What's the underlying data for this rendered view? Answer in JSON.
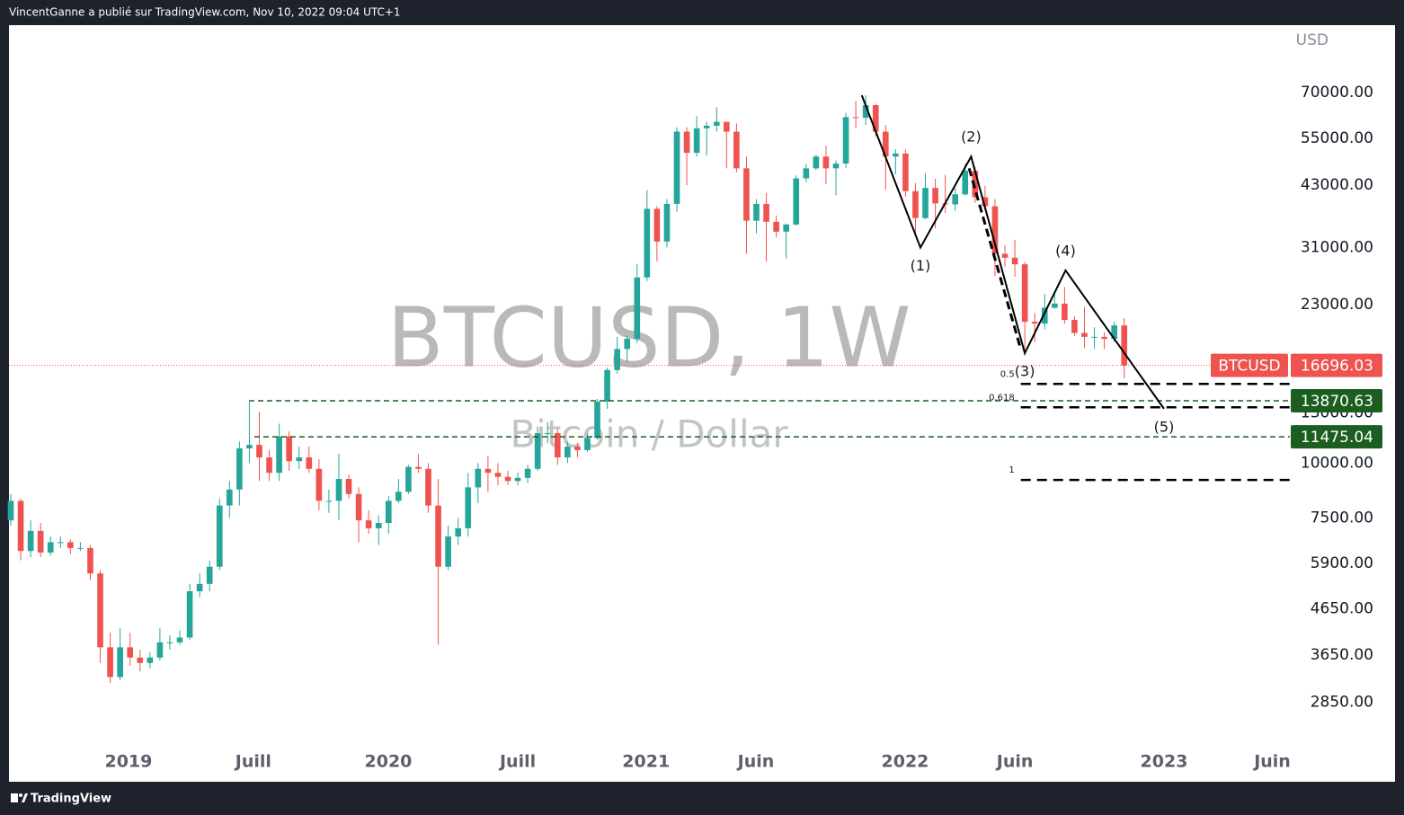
{
  "header": {
    "text": "VincentGanne a publié sur TradingView.com, Nov 10, 2022 09:04 UTC+1"
  },
  "footer": {
    "brand": "TradingView"
  },
  "chart_data": {
    "type": "candlestick",
    "watermark": {
      "title": "BTCUSD, 1W",
      "subtitle": "Bitcoin / Dollar"
    },
    "currency": "USD",
    "log_scale": true,
    "up_color": "#26a69a",
    "down_color": "#ef5350",
    "xlim": [
      -0.18,
      128.66
    ],
    "xticks": [
      {
        "value": 11.84,
        "label": "2019"
      },
      {
        "value": 24.4,
        "label": "Juill"
      },
      {
        "value": 37.97,
        "label": "2020"
      },
      {
        "value": 51.0,
        "label": "Juill"
      },
      {
        "value": 63.9,
        "label": "2021"
      },
      {
        "value": 74.95,
        "label": "Juin"
      },
      {
        "value": 89.96,
        "label": "2022"
      },
      {
        "value": 101.0,
        "label": "Juin"
      },
      {
        "value": 116.0,
        "label": "2023"
      },
      {
        "value": 126.9,
        "label": "Juin"
      }
    ],
    "ylim": [
      2265,
      99700
    ],
    "yticks": [
      {
        "value": 70000,
        "label": "70000.00"
      },
      {
        "value": 55000,
        "label": "55000.00"
      },
      {
        "value": 43000,
        "label": "43000.00"
      },
      {
        "value": 31000,
        "label": "31000.00"
      },
      {
        "value": 23000,
        "label": "23000.00"
      },
      {
        "value": 13000,
        "label": "13000.00"
      },
      {
        "value": 10000,
        "label": "10000.00"
      },
      {
        "value": 7500,
        "label": "7500.00"
      },
      {
        "value": 5900,
        "label": "5900.00"
      },
      {
        "value": 4650,
        "label": "4650.00"
      },
      {
        "value": 3650,
        "label": "3650.00"
      },
      {
        "value": 2850,
        "label": "2850.00"
      }
    ],
    "open": [
      7400,
      8200,
      6300,
      7000,
      6250,
      6600,
      6600,
      6400,
      6400,
      5600,
      3800,
      3250,
      3800,
      3600,
      3500,
      3600,
      3900,
      3900,
      4000,
      5100,
      5300,
      5800,
      8000,
      8700,
      10800,
      11000,
      10300,
      9500,
      11500,
      10100,
      10300,
      9700,
      8200,
      8200,
      9200,
      8500,
      7400,
      7100,
      7300,
      8200,
      8600,
      9800,
      9700,
      8000,
      5800,
      6800,
      7100,
      8800,
      9700,
      9500,
      9300,
      9100,
      9250,
      9700,
      11700,
      11700,
      10300,
      10900,
      10700,
      11400,
      13800,
      16300,
      18200,
      19200,
      26500,
      38000,
      32000,
      39000,
      57000,
      51000,
      58000,
      58800,
      60000,
      57000,
      47000,
      35700,
      39000,
      35500,
      33700,
      35000,
      44600,
      47000,
      50000,
      47000,
      48200,
      61500,
      61300,
      65500,
      57000,
      50000,
      50800,
      41700,
      36200,
      42400,
      39100,
      38900,
      41000,
      46400,
      40400,
      38500,
      30000,
      29400,
      28400,
      21000,
      20800,
      22600,
      23100,
      21200,
      19800,
      19400,
      19400,
      19200,
      20600
    ],
    "high": [
      8500,
      8300,
      7400,
      7300,
      6800,
      6800,
      6700,
      6600,
      6500,
      5700,
      4100,
      4200,
      4100,
      3750,
      3700,
      4200,
      4050,
      4150,
      5300,
      5600,
      6000,
      8300,
      9100,
      11200,
      13800,
      13100,
      10700,
      12300,
      11800,
      10900,
      10900,
      10200,
      8700,
      10500,
      9400,
      8800,
      7800,
      7600,
      8400,
      9200,
      9900,
      10500,
      10000,
      9200,
      7200,
      7500,
      9500,
      10000,
      10400,
      10000,
      9600,
      9500,
      9900,
      12100,
      12400,
      12000,
      11200,
      11100,
      11700,
      14000,
      16500,
      19400,
      19500,
      28400,
      41900,
      38500,
      40000,
      58300,
      58300,
      61800,
      60000,
      64800,
      60000,
      59500,
      50000,
      40000,
      41300,
      36700,
      35200,
      45300,
      48100,
      50500,
      52900,
      49000,
      62900,
      67000,
      69000,
      66000,
      59000,
      52000,
      51900,
      43500,
      45800,
      44500,
      45400,
      42400,
      48200,
      47300,
      42900,
      40000,
      31400,
      32300,
      28700,
      22000,
      24300,
      24700,
      25200,
      21600,
      22700,
      20400,
      19900,
      21000,
      21400
    ],
    "low": [
      7200,
      6000,
      6100,
      6100,
      6150,
      6400,
      6200,
      6300,
      5400,
      3500,
      3150,
      3200,
      3450,
      3350,
      3400,
      3550,
      3750,
      3850,
      3950,
      4950,
      5100,
      5700,
      7500,
      8000,
      10000,
      9100,
      9100,
      9100,
      9600,
      9700,
      9500,
      7800,
      7700,
      7400,
      8300,
      6600,
      6900,
      6500,
      6900,
      8100,
      8500,
      9500,
      7700,
      3850,
      5700,
      6500,
      6800,
      8100,
      8600,
      8900,
      8900,
      8900,
      9000,
      9600,
      11100,
      9900,
      10000,
      10300,
      10600,
      11300,
      13300,
      16000,
      16900,
      18800,
      26000,
      28800,
      31000,
      37400,
      43000,
      50000,
      50300,
      57000,
      47000,
      46000,
      30000,
      33400,
      28800,
      32700,
      29300,
      34800,
      43700,
      46500,
      43300,
      40800,
      47100,
      58000,
      59000,
      55600,
      42000,
      45600,
      40500,
      32900,
      36000,
      34300,
      37200,
      37600,
      40800,
      39200,
      37600,
      26700,
      28000,
      26600,
      17600,
      18900,
      20200,
      22500,
      20800,
      19500,
      18300,
      18200,
      18200,
      18900,
      15600
    ],
    "close": [
      8200,
      6300,
      7000,
      6250,
      6600,
      6600,
      6400,
      6400,
      5600,
      3800,
      3250,
      3800,
      3600,
      3500,
      3600,
      3900,
      3900,
      4000,
      5100,
      5300,
      5800,
      8000,
      8700,
      10800,
      11000,
      10300,
      9500,
      11500,
      10100,
      10300,
      9700,
      8200,
      8200,
      9200,
      8500,
      7400,
      7100,
      7300,
      8200,
      8600,
      9800,
      9700,
      8000,
      5800,
      6800,
      7100,
      8800,
      9700,
      9500,
      9300,
      9100,
      9250,
      9700,
      11700,
      11700,
      10300,
      10900,
      10700,
      11400,
      13800,
      16300,
      18200,
      19200,
      26500,
      38000,
      32000,
      39000,
      57000,
      51000,
      58000,
      58800,
      60000,
      57000,
      47000,
      35700,
      39000,
      35500,
      33700,
      35000,
      44600,
      47000,
      50000,
      47000,
      48200,
      61500,
      61300,
      65500,
      57000,
      50000,
      50800,
      41700,
      36200,
      42400,
      39100,
      38900,
      41000,
      46400,
      40400,
      38500,
      30000,
      29400,
      28400,
      21000,
      20800,
      22600,
      23100,
      21200,
      19800,
      19400,
      19400,
      19200,
      20600,
      16696.03
    ],
    "last_price": {
      "symbol": "BTCUSD",
      "value": 16696.03
    },
    "levels": [
      {
        "price": 13870.63,
        "start": 23.96,
        "color": "#1b5e20"
      },
      {
        "price": 11475.04,
        "start": 24.5,
        "color": "#1b5e20"
      }
    ],
    "fib_levels": [
      {
        "ratio": 0.5,
        "price": 15150
      },
      {
        "ratio": 0.618,
        "price": 13400
      },
      {
        "ratio": 1,
        "price": 9150
      }
    ],
    "fib_start": 101.6,
    "waves": [
      {
        "x": 85.6,
        "price": 69000
      },
      {
        "x": 91.5,
        "price": 31000,
        "label": "(1)"
      },
      {
        "x": 96.6,
        "price": 50000,
        "label": "(2)"
      },
      {
        "x": 102.0,
        "price": 17800,
        "label": "(3)"
      },
      {
        "x": 106.1,
        "price": 27500,
        "label": "(4)"
      },
      {
        "x": 116.0,
        "price": 13300,
        "label": "(5)"
      }
    ],
    "dashed_wave": [
      {
        "x": 96.4,
        "price": 47000
      },
      {
        "x": 101.5,
        "price": 18500
      }
    ]
  }
}
